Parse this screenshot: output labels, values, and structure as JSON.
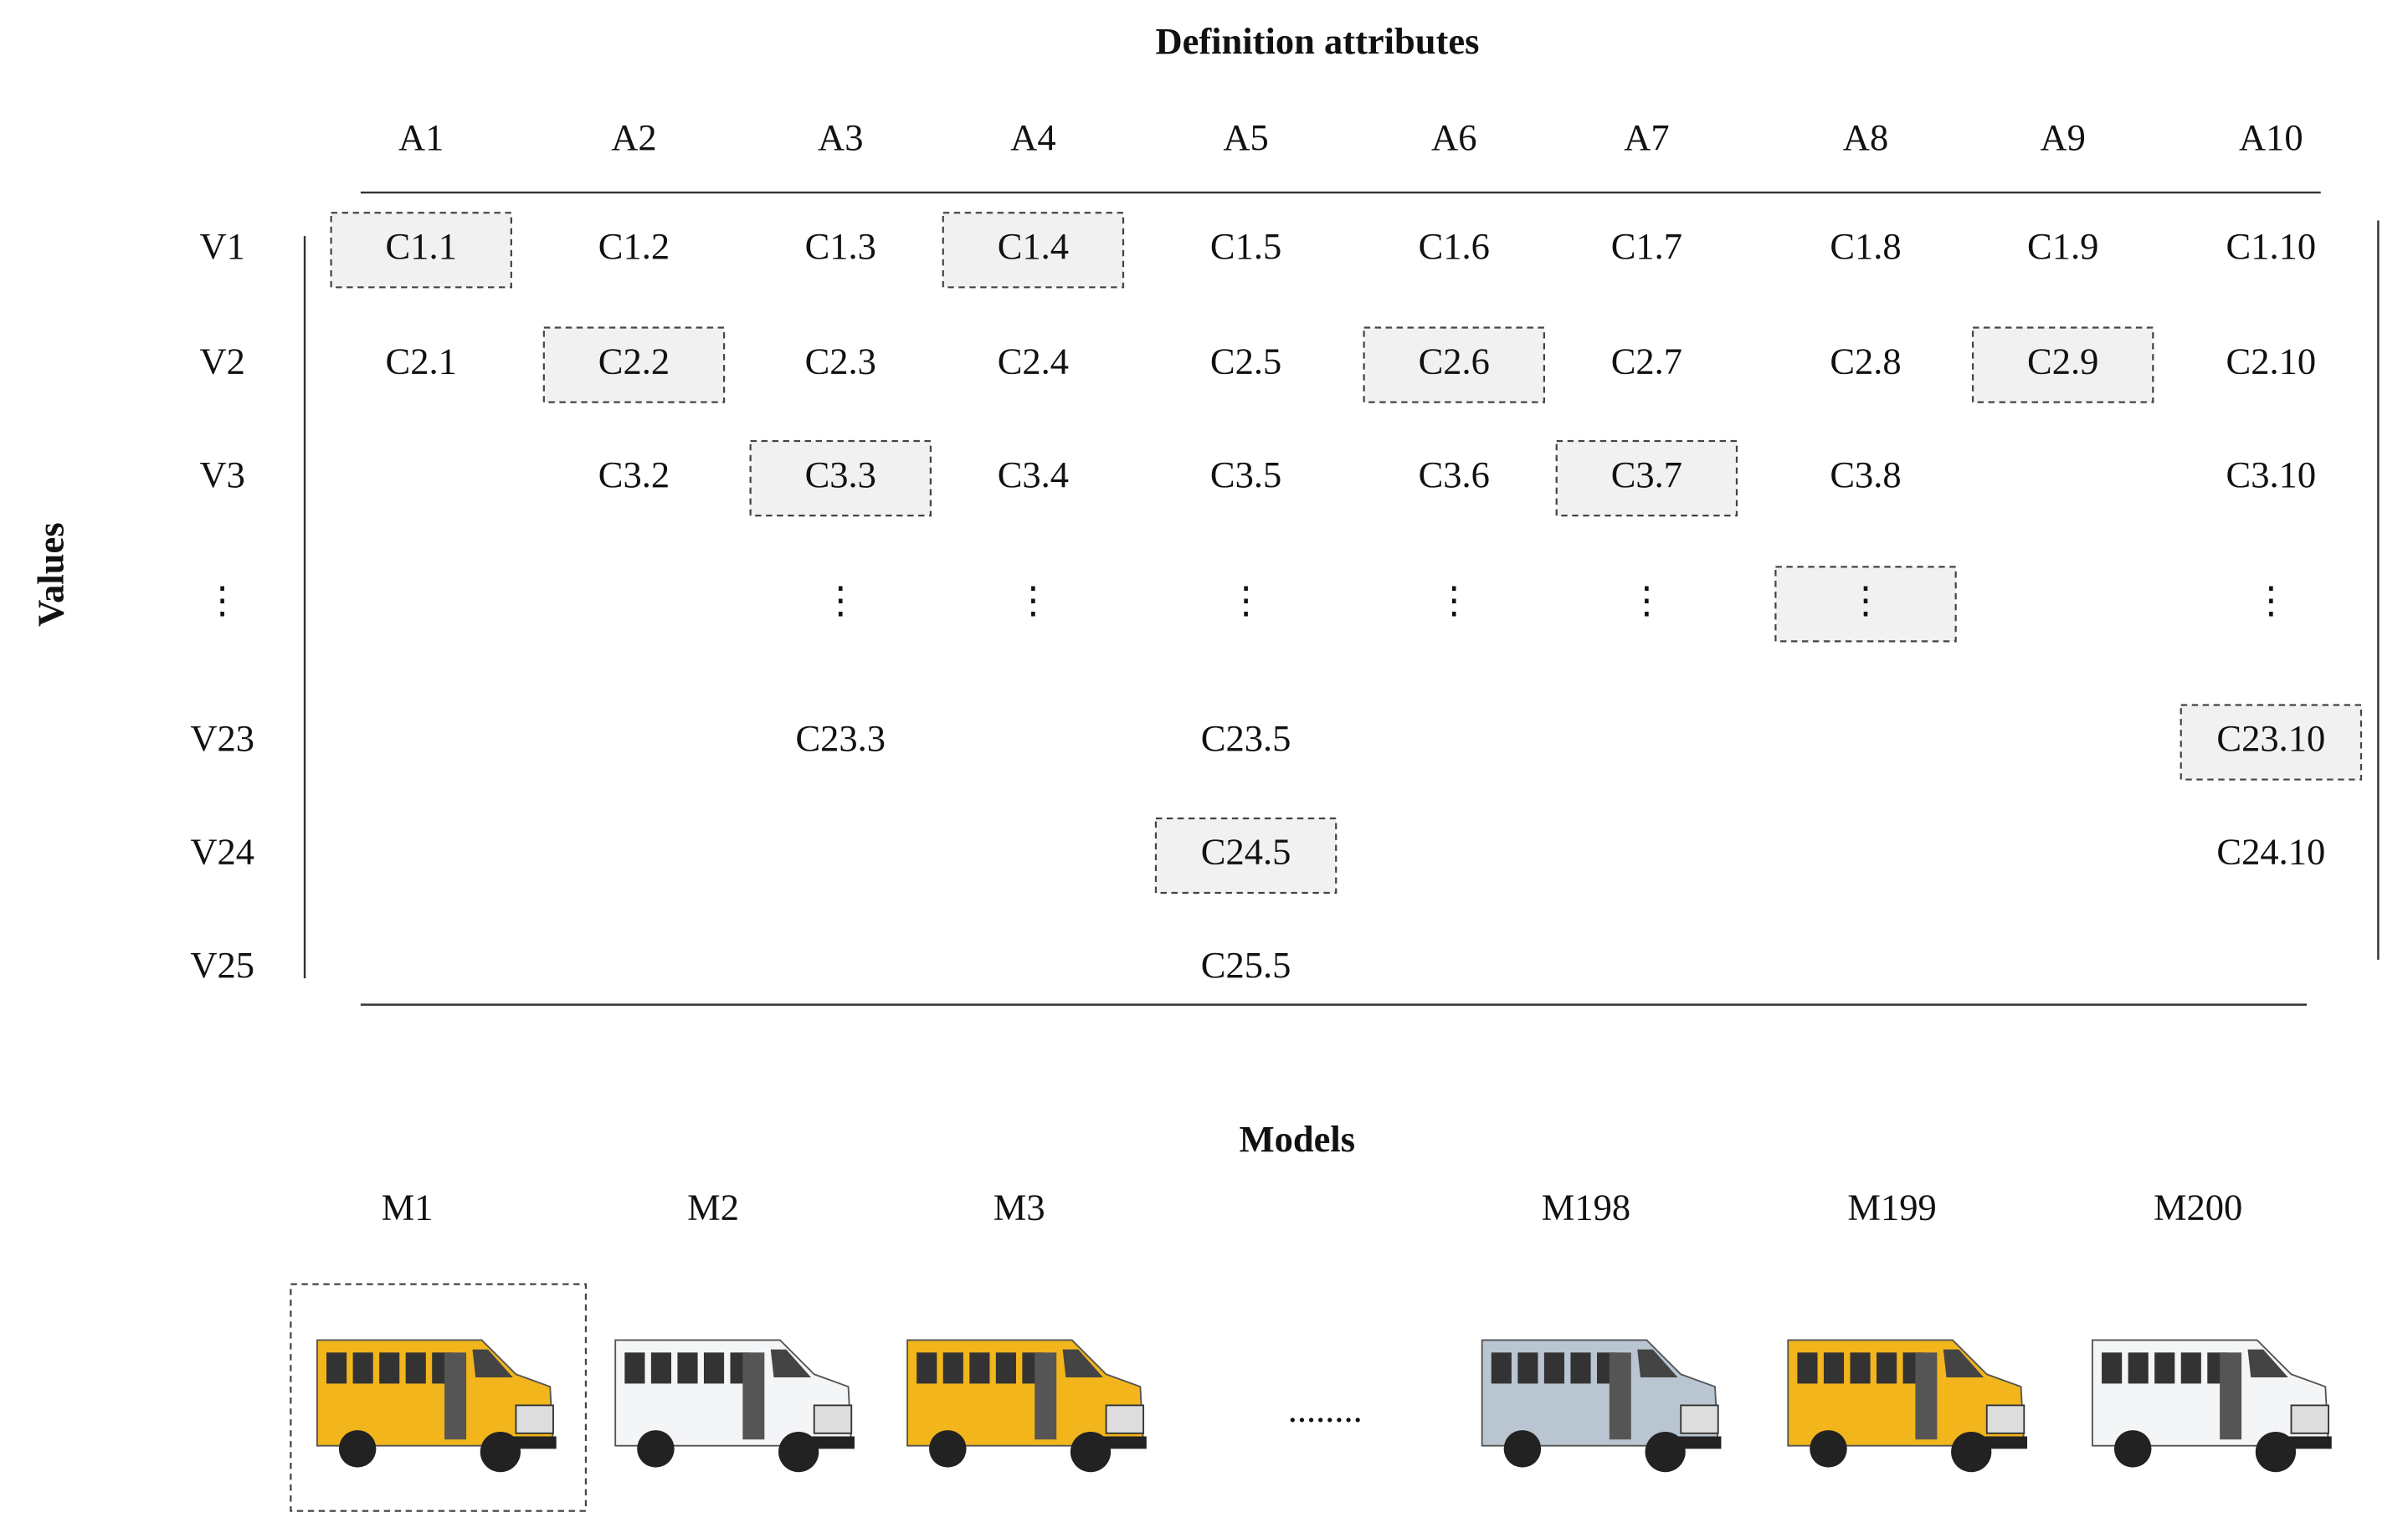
{
  "header": {
    "title": "Definition attributes",
    "y_axis_label": "Values"
  },
  "columns": [
    "A1",
    "A2",
    "A3",
    "A4",
    "A5",
    "A6",
    "A7",
    "A8",
    "A9",
    "A10"
  ],
  "rows": [
    {
      "label": "V1",
      "cells": [
        "C1.1",
        "C1.2",
        "C1.3",
        "C1.4",
        "C1.5",
        "C1.6",
        "C1.7",
        "C1.8",
        "C1.9",
        "C1.10"
      ],
      "selected": [
        0,
        3
      ]
    },
    {
      "label": "V2",
      "cells": [
        "C2.1",
        "C2.2",
        "C2.3",
        "C2.4",
        "C2.5",
        "C2.6",
        "C2.7",
        "C2.8",
        "C2.9",
        "C2.10"
      ],
      "selected": [
        1,
        5,
        8
      ]
    },
    {
      "label": "V3",
      "cells": [
        null,
        "C3.2",
        "C3.3",
        "C3.4",
        "C3.5",
        "C3.6",
        "C3.7",
        "C3.8",
        null,
        "C3.10"
      ],
      "selected": [
        2,
        6
      ]
    },
    {
      "label": "⋮",
      "cells": [
        null,
        null,
        "⋮",
        "⋮",
        "⋮",
        "⋮",
        "⋮",
        "⋮",
        null,
        "⋮"
      ],
      "selected": [
        7
      ]
    },
    {
      "label": "V23",
      "cells": [
        null,
        null,
        "C23.3",
        null,
        "C23.5",
        null,
        null,
        null,
        null,
        "C23.10"
      ],
      "selected": [
        9
      ]
    },
    {
      "label": "V24",
      "cells": [
        null,
        null,
        null,
        null,
        "C24.5",
        null,
        null,
        null,
        null,
        "C24.10"
      ],
      "selected": [
        4
      ]
    },
    {
      "label": "V25",
      "cells": [
        null,
        null,
        null,
        null,
        "C25.5",
        null,
        null,
        null,
        null,
        null
      ],
      "selected": []
    }
  ],
  "models": {
    "title": "Models",
    "ellipsis": "........",
    "items": [
      {
        "label": "M1",
        "color": "#f2b51c",
        "selected": true
      },
      {
        "label": "M2",
        "color": "#f4f5f7",
        "selected": false
      },
      {
        "label": "M3",
        "color": "#f2b51c",
        "selected": false
      },
      {
        "label": "M198",
        "color": "#b9c6d2",
        "selected": false
      },
      {
        "label": "M199",
        "color": "#f2b51c",
        "selected": false
      },
      {
        "label": "M200",
        "color": "#f4f5f7",
        "selected": false
      }
    ]
  }
}
